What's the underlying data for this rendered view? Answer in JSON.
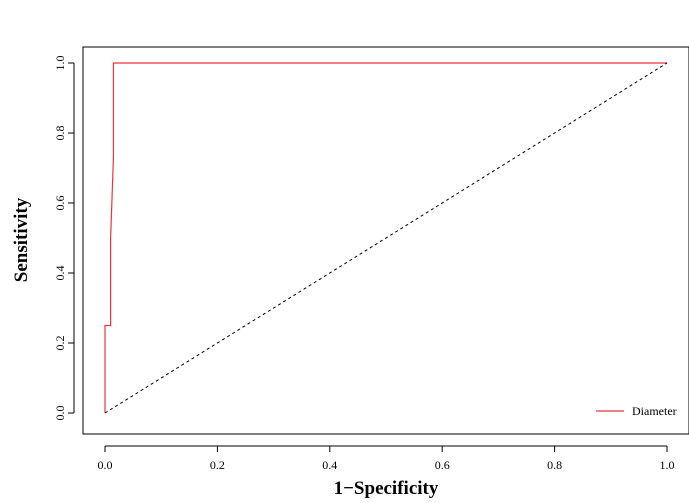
{
  "chart_data": {
    "type": "line",
    "title": "",
    "xlabel": "1−Specificity",
    "ylabel": "Sensitivity",
    "xlim": [
      0.0,
      1.0
    ],
    "ylim": [
      0.0,
      1.0
    ],
    "xticks": [
      "0.0",
      "0.2",
      "0.4",
      "0.6",
      "0.8",
      "1.0"
    ],
    "yticks": [
      "0.0",
      "0.2",
      "0.4",
      "0.6",
      "0.8",
      "1.0"
    ],
    "grid": false,
    "legend": {
      "position": "bottom-right"
    },
    "series": [
      {
        "name": "Diameter",
        "color": "#e8343c",
        "style": "step",
        "x": [
          0.0,
          0.0,
          0.01,
          0.01,
          0.01,
          0.015,
          0.015,
          1.0
        ],
        "y": [
          0.0,
          0.25,
          0.25,
          0.5,
          0.5,
          0.73,
          1.0,
          1.0
        ]
      },
      {
        "color": "#000000",
        "style": "dashed",
        "x": [
          0.0,
          1.0
        ],
        "y": [
          0.0,
          1.0
        ]
      }
    ]
  }
}
